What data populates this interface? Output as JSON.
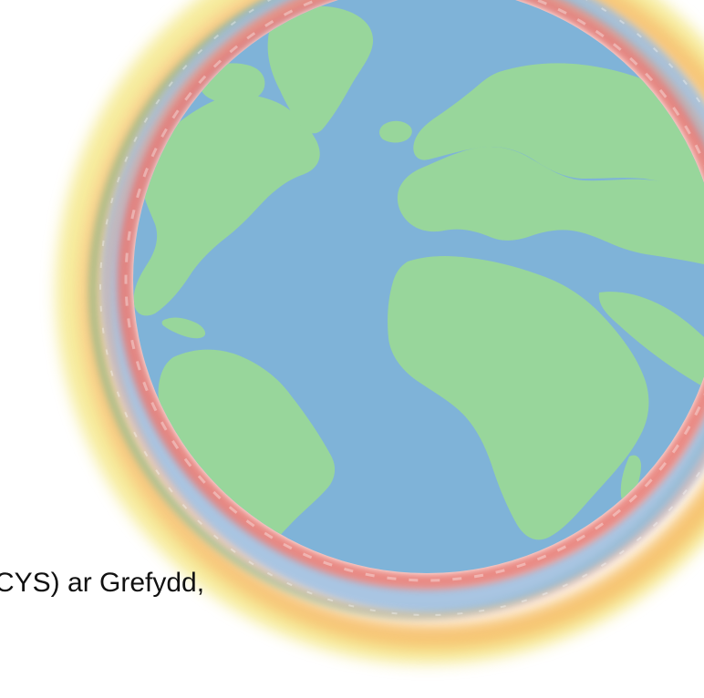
{
  "caption": {
    "text": "CYS) ar Grefydd,"
  },
  "globe": {
    "ocean_color": "#7fb3d8",
    "land_color": "#98d69b",
    "ring_colors": [
      "#f2e36c",
      "#f6b55d",
      "#6fb48c",
      "#e77b74",
      "#94b7db"
    ]
  }
}
